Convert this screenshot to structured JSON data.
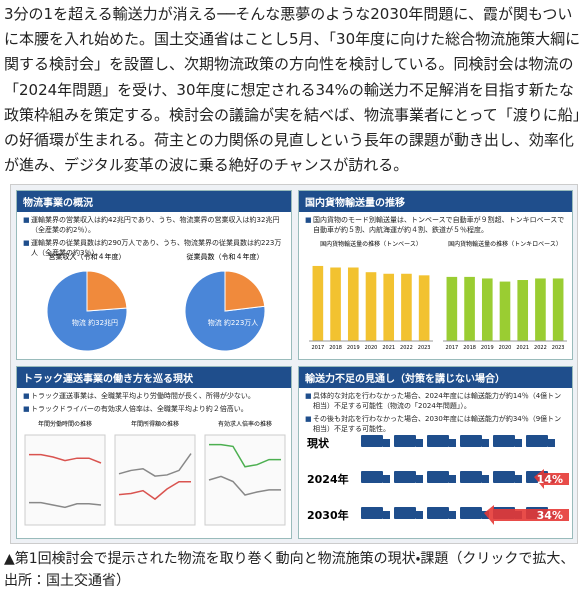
{
  "article": {
    "paragraph": "3分の1を超える輸送力が消える──そんな悪夢のような2030年問題に、霞が関もついに本腰を入れ始めた。国土交通省はことし5月、「30年度に向けた総合物流施策大綱に関する検討会」を設置し、次期物流政策の方向性を検討している。同検討会は物流の「2024年問題」を受け、30年度に想定される34%の輸送力不足解消を目指す新たな政策枠組みを策定する。検討会の議論が実を結べば、物流事業者にとって「渡りに船」の好循環が生まれる。荷主との力関係の見直しという長年の課題が動き出し、効率化が進み、デジタル変革の波に乗る絶好のチャンスが訪れる。"
  },
  "figure": {
    "panel1": {
      "title": "物流事業の概況",
      "bullets": [
        "運輸業界の営業収入は約42兆円であり、うち、物流業界の営業収入は約32兆円（全産業の約2％）。",
        "運輸業界の従業員数は約290万人であり、うち、物流業界の従業員数は約223万人（全産業の約3％）。"
      ],
      "pies": [
        {
          "title": "営業収入（令和４年度）",
          "label": "物流 約32兆円",
          "values": [
            32,
            10
          ],
          "colors": [
            "#4a86d8",
            "#f08a3c"
          ]
        },
        {
          "title": "従業員数（令和４年度）",
          "label": "物流 約223万人",
          "values": [
            223,
            67
          ],
          "colors": [
            "#4a86d8",
            "#f08a3c"
          ]
        }
      ]
    },
    "panel2": {
      "title": "国内貨物輸送量の推移",
      "bullets": [
        "国内貨物のモード別輸送量は、トンベースで自動車が９割超、トンキロベースで自動車が約５割、内航海運が約４割、鉄道が５％程度。"
      ],
      "charts": [
        {
          "type": "bar",
          "title": "国内貨物輸送量の推移（トンベース）",
          "categories": [
            "2017",
            "2018",
            "2019",
            "2020",
            "2021",
            "2022",
            "2023"
          ],
          "values": [
            48,
            47,
            47,
            44,
            43,
            43,
            42
          ],
          "ylim": [
            0,
            55
          ],
          "color": "#f2c230"
        },
        {
          "type": "bar",
          "title": "国内貨物輸送量の推移（トンキロベース）",
          "categories": [
            "2017",
            "2018",
            "2019",
            "2020",
            "2021",
            "2022",
            "2023"
          ],
          "values": [
            41,
            41,
            40,
            38,
            39,
            40,
            40
          ],
          "ylim": [
            0,
            55
          ],
          "color": "#9acd32"
        }
      ]
    },
    "panel3": {
      "title": "トラック運送事業の働き方を巡る現状",
      "bullets": [
        "トラック運送事業は、全職業平均より労働時間が長く、所得が少ない。",
        "トラックドライバーの有効求人倍率は、全職業平均より約２倍高い。"
      ],
      "charts": [
        {
          "type": "line",
          "title": "年間労働時間の推移",
          "ylim": [
            1900,
            2800
          ],
          "series": [
            {
              "color": "#d9534f",
              "values": [
                2604,
                2604,
                2580,
                2544,
                2568,
                2568,
                2520
              ]
            },
            {
              "color": "#888888",
              "values": [
                2124,
                2124,
                2100,
                2076,
                2112,
                2112,
                2100
              ]
            }
          ]
        },
        {
          "type": "line",
          "title": "年間所得額の推移",
          "ylim": [
            400,
            560
          ],
          "series": [
            {
              "color": "#d9534f",
              "values": [
                454,
                456,
                461,
                446,
                464,
                477,
                477
              ]
            },
            {
              "color": "#888888",
              "values": [
                491,
                497,
                500,
                487,
                489,
                497,
                527
              ]
            }
          ]
        },
        {
          "type": "line",
          "title": "有効求人倍率の推移",
          "ylim": [
            0,
            3
          ],
          "series": [
            {
              "color": "#4caf50",
              "values": [
                2.68,
                2.68,
                2.62,
                1.94,
                2.01,
                2.18,
                2.18
              ]
            },
            {
              "color": "#888888",
              "values": [
                1.5,
                1.62,
                1.45,
                1.0,
                1.1,
                1.17,
                1.17
              ]
            }
          ]
        }
      ]
    },
    "panel4": {
      "title": "輸送力不足の見通し（対策を講じない場合）",
      "bullets": [
        "具体的な対応を行わなかった場合、2024年度には輸送能力が約14％（4億トン相当）不足する可能性（物流の「2024年問題」）。",
        "その後も対応を行わなかった場合、2030年度には輸送能力が約34％（9億トン相当）不足する可能性。"
      ],
      "rows": [
        {
          "label": "現状",
          "value": null,
          "value_label": null
        },
        {
          "label": "2024年",
          "value": 14,
          "value_label": "14%"
        },
        {
          "label": "2030年",
          "value": 34,
          "value_label": "34%"
        }
      ]
    }
  },
  "caption": "▲第1回検討会で提示された物流を取り巻く動向と物流施策の現状・課題（クリックで拡大、出所：国土交通省）"
}
